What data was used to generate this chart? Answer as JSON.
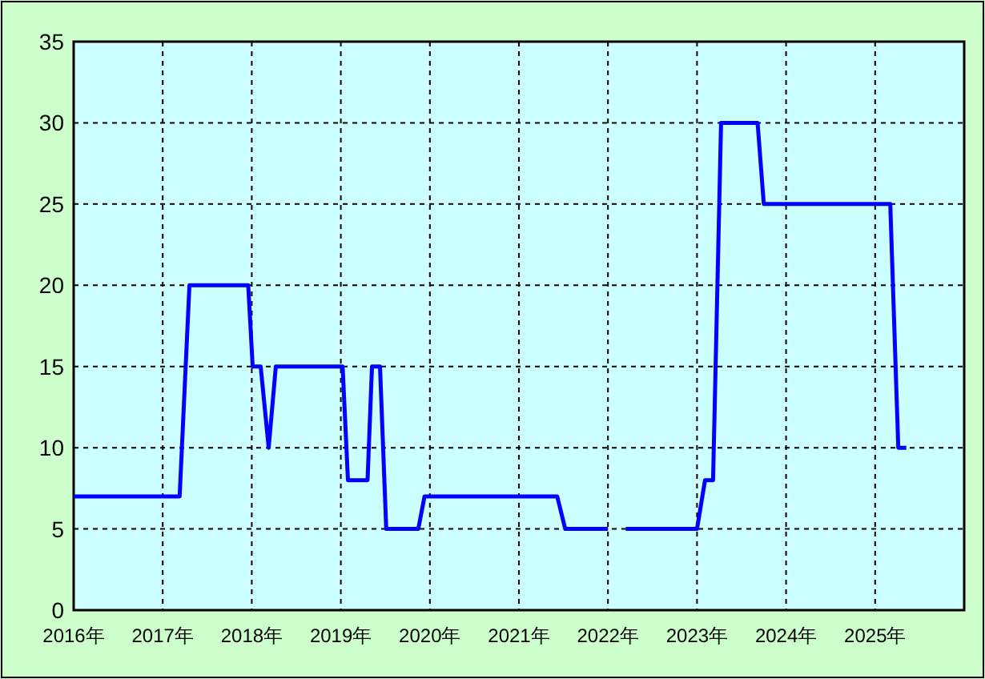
{
  "chart_data": {
    "type": "line",
    "series": [
      {
        "color": "#0000ff",
        "x": [
          2016.0,
          2017.19,
          2017.3,
          2017.96,
          2018.01,
          2018.1,
          2018.19,
          2018.27,
          2019.02,
          2019.08,
          2019.3,
          2019.35,
          2019.44,
          2019.51,
          2019.87,
          2019.94,
          2021.43,
          2021.52,
          2022.0
        ],
        "values": [
          7,
          7,
          20,
          20,
          15,
          15,
          10,
          15,
          15,
          8,
          8,
          15,
          15,
          5,
          5,
          7,
          7,
          5,
          5
        ]
      },
      {
        "color": "#0000ff",
        "x": [
          2022.2,
          2023.0,
          2023.09,
          2023.18,
          2023.27,
          2023.68,
          2023.75,
          2025.17,
          2025.26,
          2025.35
        ],
        "values": [
          5,
          5,
          8,
          8,
          30,
          30,
          25,
          25,
          10,
          10
        ]
      }
    ],
    "xlim": [
      2016,
      2026
    ],
    "xticks": [
      {
        "value": 2016,
        "label": "2016年"
      },
      {
        "value": 2017,
        "label": "2017年"
      },
      {
        "value": 2018,
        "label": "2018年"
      },
      {
        "value": 2019,
        "label": "2019年"
      },
      {
        "value": 2020,
        "label": "2020年"
      },
      {
        "value": 2021,
        "label": "2021年"
      },
      {
        "value": 2022,
        "label": "2022年"
      },
      {
        "value": 2023,
        "label": "2023年"
      },
      {
        "value": 2024,
        "label": "2024年"
      },
      {
        "value": 2025,
        "label": "2025年"
      }
    ],
    "ylim": [
      0,
      35
    ],
    "yticks": [
      0,
      5,
      10,
      15,
      20,
      25,
      30,
      35
    ],
    "grid": true,
    "marker": "none",
    "line_style": "solid"
  }
}
